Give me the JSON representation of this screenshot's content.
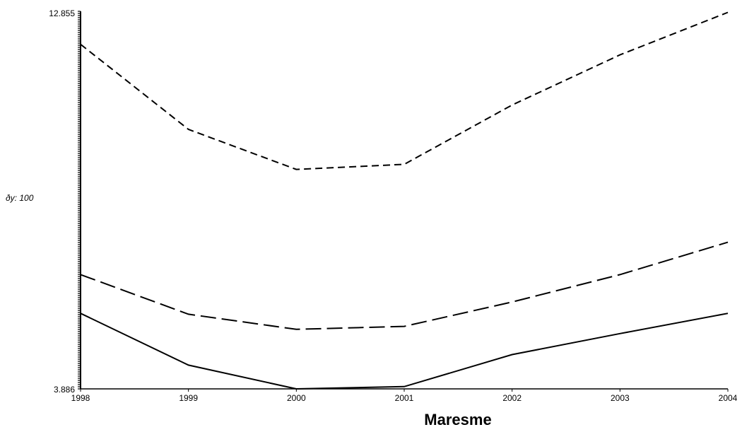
{
  "chart_data": {
    "type": "line",
    "title": "Maresme",
    "xlabel": "",
    "ylabel": "ðy: 100",
    "x": [
      "1998",
      "1999",
      "2000",
      "2001",
      "2002",
      "2003",
      "2004"
    ],
    "ylim": [
      3.886,
      12.855
    ],
    "yticks": [
      "12.855",
      "3.886"
    ],
    "series": [
      {
        "style": "short-dash",
        "values": [
          12.07,
          10.05,
          9.1,
          9.22,
          10.63,
          11.82,
          12.83
        ]
      },
      {
        "style": "long-dash",
        "values": [
          6.6,
          5.66,
          5.3,
          5.37,
          5.95,
          6.6,
          7.37
        ]
      },
      {
        "style": "solid",
        "values": [
          5.68,
          4.45,
          3.886,
          3.94,
          4.7,
          5.2,
          5.68
        ]
      }
    ]
  }
}
